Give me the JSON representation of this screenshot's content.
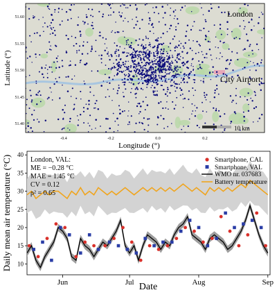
{
  "map": {
    "title": "London",
    "airport_label": "City Airport",
    "xlabel": "Longitude (°)",
    "ylabel": "Latitude (°)",
    "x_ticks": [
      "-0.4",
      "-0.2",
      "0.0",
      "0.2"
    ],
    "y_ticks": [
      "51.60",
      "51.55",
      "51.50",
      "51.45",
      "51.40"
    ],
    "scalebar_label": "10 km",
    "colors": {
      "dots": "#0a0a7a",
      "land": "#dcdcd2",
      "parks": "#b8d8a6",
      "river": "#a8c6e0",
      "airport": "#e6a8b8"
    }
  },
  "chart_data": {
    "type": "line",
    "xlabel": "Date",
    "ylabel": "Daily mean air temperature (°C)",
    "x_ticks": [
      "Jun",
      "Jul",
      "Aug",
      "Sep"
    ],
    "ylim": [
      7,
      41
    ],
    "y_ticks": [
      10,
      15,
      20,
      25,
      30,
      35,
      40
    ],
    "x_day_range": [
      136,
      245
    ],
    "annotations": [
      "London, VAL:",
      "ME = −0.28 °C",
      "MAE = 1.45 °C",
      "CV = 0.12",
      "ρ² = 0.65"
    ],
    "legend": [
      "Smartphone, CAL",
      "Smartphone, VAL",
      "WMO nr. 037683",
      "Battery temperature"
    ],
    "legend_position": "top-right",
    "colors": {
      "cal": "#d9302a",
      "val": "#2a3da6",
      "wmo": "#000000",
      "battery": "#f0a51e",
      "band": "#d3d3d3",
      "wmo_band": "#9e9e9e"
    },
    "series": [
      {
        "name": "WMO nr. 037683",
        "x": [
          136,
          138,
          140,
          142,
          144,
          146,
          148,
          150,
          152,
          154,
          156,
          158,
          160,
          162,
          164,
          166,
          168,
          170,
          172,
          174,
          176,
          178,
          180,
          182,
          184,
          186,
          188,
          190,
          192,
          194,
          196,
          198,
          200,
          202,
          204,
          206,
          208,
          210,
          212,
          214,
          216,
          218,
          220,
          222,
          224,
          226,
          228,
          230,
          232,
          234,
          236,
          238,
          240,
          242,
          244
        ],
        "y": [
          13,
          15,
          11,
          9,
          12,
          14,
          16,
          20,
          19,
          17,
          12,
          11,
          17,
          15,
          14,
          12,
          14,
          16,
          15,
          17,
          19,
          22,
          15,
          13,
          15,
          11,
          15,
          18,
          17,
          16,
          14,
          16,
          15,
          18,
          20,
          21,
          23,
          18,
          17,
          16,
          14,
          17,
          18,
          17,
          16,
          14,
          15,
          17,
          19,
          22,
          26,
          22,
          18,
          15,
          13
        ]
      },
      {
        "name": "Battery temperature",
        "x": [
          136,
          138,
          140,
          142,
          144,
          146,
          148,
          150,
          152,
          154,
          156,
          158,
          160,
          162,
          164,
          166,
          168,
          170,
          172,
          174,
          176,
          178,
          180,
          182,
          184,
          186,
          188,
          190,
          192,
          194,
          196,
          198,
          200,
          202,
          204,
          206,
          208,
          210,
          212,
          214,
          216,
          218,
          220,
          222,
          224,
          226,
          228,
          230,
          232,
          234,
          236,
          238,
          240,
          242,
          244
        ],
        "y": [
          29,
          30,
          28,
          29,
          30,
          29,
          30,
          30,
          29,
          28,
          30,
          29,
          31,
          29,
          30,
          29,
          31,
          30,
          29,
          30,
          29,
          30,
          31,
          30,
          29,
          30,
          31,
          30,
          31,
          30,
          31,
          30,
          31,
          30,
          31,
          32,
          31,
          30,
          31,
          30,
          29,
          31,
          30,
          31,
          30,
          31,
          30,
          31,
          32,
          31,
          33,
          32,
          31,
          30,
          29
        ]
      },
      {
        "name": "Smartphone, CAL",
        "x": [
          137,
          141,
          145,
          149,
          153,
          158,
          162,
          166,
          171,
          175,
          179,
          183,
          187,
          191,
          195,
          199,
          203,
          207,
          211,
          215,
          219,
          223,
          227,
          231,
          235,
          239,
          243
        ],
        "y": [
          15,
          12,
          17,
          21,
          20,
          12,
          16,
          15,
          15,
          17,
          20,
          16,
          11,
          15,
          14,
          15,
          17,
          20,
          19,
          16,
          17,
          23,
          19,
          15,
          18,
          24,
          15
        ]
      },
      {
        "name": "Smartphone, VAL",
        "x": [
          139,
          143,
          147,
          151,
          155,
          160,
          164,
          168,
          173,
          177,
          181,
          185,
          189,
          193,
          197,
          201,
          205,
          209,
          213,
          217,
          221,
          225,
          229,
          233,
          237,
          241
        ],
        "y": [
          14,
          16,
          11,
          20,
          18,
          13,
          18,
          14,
          16,
          15,
          14,
          13,
          17,
          15,
          16,
          16,
          19,
          22,
          20,
          15,
          17,
          24,
          20,
          21,
          22,
          20
        ]
      }
    ]
  }
}
